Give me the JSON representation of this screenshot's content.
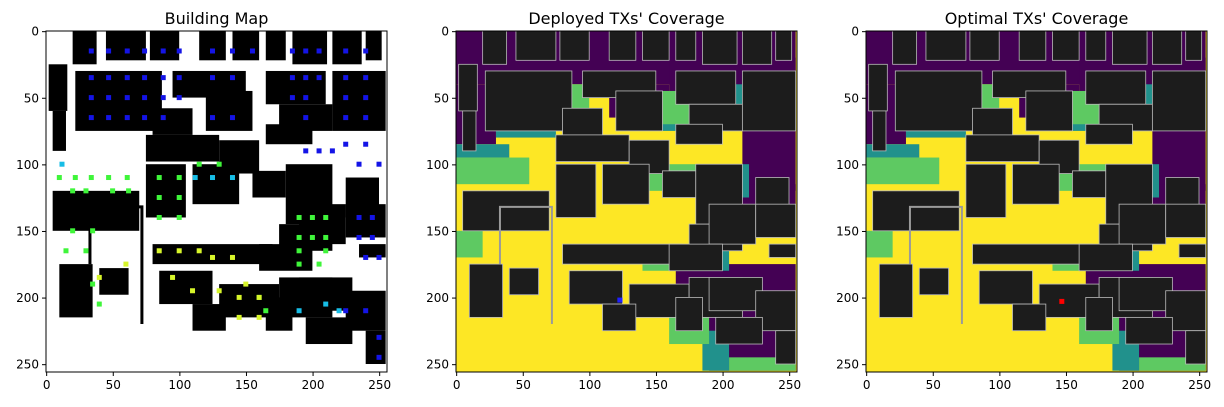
{
  "chart_data": [
    {
      "type": "heatmap",
      "title": "Building Map",
      "xlim": [
        0,
        255
      ],
      "ylim": [
        255,
        0
      ],
      "xticks": [
        "0",
        "50",
        "100",
        "150",
        "200",
        "250"
      ],
      "yticks": [
        "0",
        "50",
        "100",
        "150",
        "200",
        "250"
      ],
      "colors": {
        "background": "#ffffff",
        "building": "#000000",
        "blue": "#1414e6",
        "cyan": "#17bde6",
        "green": "#3ff53a",
        "yellow": "#d7f52a"
      }
    },
    {
      "type": "heatmap",
      "title": "Deployed TXs' Coverage",
      "xlim": [
        0,
        255
      ],
      "ylim": [
        255,
        0
      ],
      "xticks": [
        "0",
        "50",
        "100",
        "150",
        "200",
        "250"
      ],
      "yticks": [
        "0",
        "50",
        "100",
        "150",
        "200",
        "250"
      ],
      "tx_marker": {
        "x": 123,
        "y": 202,
        "color": "#2020ff"
      },
      "colors": {
        "high": "#fde725",
        "mid": "#5ec962",
        "low": "#21918c",
        "none": "#440154",
        "building": "#1c1c1c"
      }
    },
    {
      "type": "heatmap",
      "title": "Optimal TXs' Coverage",
      "xlim": [
        0,
        255
      ],
      "ylim": [
        255,
        0
      ],
      "xticks": [
        "0",
        "50",
        "100",
        "150",
        "200",
        "250"
      ],
      "yticks": [
        "0",
        "50",
        "100",
        "150",
        "200",
        "250"
      ],
      "tx_marker": {
        "x": 147,
        "y": 203,
        "color": "#ff0000"
      },
      "colors": {
        "high": "#fde725",
        "mid": "#5ec962",
        "low": "#21918c",
        "none": "#440154",
        "building": "#1c1c1c"
      }
    }
  ]
}
